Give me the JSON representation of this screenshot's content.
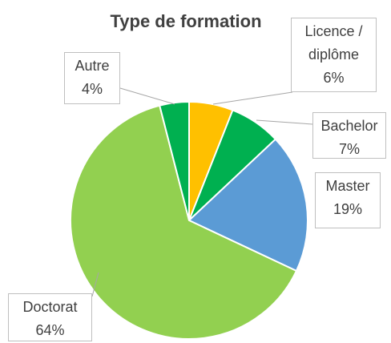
{
  "chart_data": {
    "type": "pie",
    "title": "Type de formation",
    "categories": [
      "Licence / diplôme",
      "Bachelor",
      "Master",
      "Doctorat",
      "Autre"
    ],
    "values": [
      6,
      7,
      19,
      64,
      4
    ],
    "value_labels": [
      "6%",
      "7%",
      "19%",
      "64%",
      "4%"
    ],
    "colors": [
      "#ffc000",
      "#00b050",
      "#5b9bd5",
      "#92d050",
      "#00b050"
    ]
  }
}
